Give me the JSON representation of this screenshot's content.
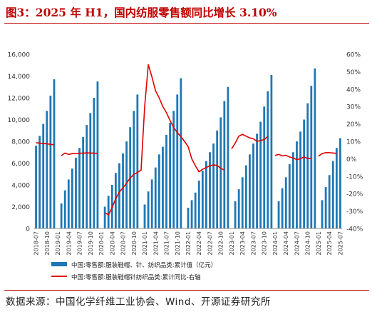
{
  "title": "图3：2025 年 H1，国内纺服零售额同比增长 3.10%",
  "source": "数据来源：中国化学纤维工业协会、Wind、开源证券研究所",
  "chart_data": {
    "type": "bar+line",
    "bar_color": "#1f77b4",
    "line_color": "#e00000",
    "legend_position": "bottom",
    "grid": false,
    "y_left": {
      "min": 0,
      "max": 16000,
      "ticks": [
        "0",
        "2,000",
        "4,000",
        "6,000",
        "8,000",
        "10,000",
        "12,000",
        "14,000",
        "16,000"
      ]
    },
    "y_right": {
      "min": -40,
      "max": 60,
      "ticks": [
        "-40%",
        "-30%",
        "-20%",
        "-10%",
        "0%",
        "10%",
        "20%",
        "30%",
        "40%",
        "50%",
        "60%"
      ]
    },
    "x_tick_labels": [
      "2018-07",
      "2018-10",
      "2019-01",
      "2019-04",
      "2019-07",
      "2019-10",
      "2020-01",
      "2020-04",
      "2020-07",
      "2020-10",
      "2021-01",
      "2021-04",
      "2021-07",
      "2021-10",
      "2022-01",
      "2022-04",
      "2022-07",
      "2022-10",
      "2023-01",
      "2023-04",
      "2023-07",
      "2023-10",
      "2024-01",
      "2024-04",
      "2024-07",
      "2024-10",
      "2025-01",
      "2025-04",
      "2025-07"
    ],
    "series": [
      {
        "name": "中国:零售额:服装鞋帽、针、纺织品类:累计值（亿元）",
        "axis": "left",
        "type": "bar",
        "values": [
          7600,
          8500,
          9600,
          10800,
          12200,
          13700,
          null,
          2300,
          3500,
          4500,
          5500,
          6500,
          7400,
          8400,
          9500,
          10600,
          12000,
          13500,
          null,
          2000,
          3000,
          4000,
          5100,
          6000,
          6900,
          8000,
          9300,
          10800,
          12300,
          null,
          2200,
          3400,
          4500,
          5600,
          6800,
          7500,
          8600,
          9700,
          10800,
          12300,
          13800,
          null,
          1900,
          2600,
          3300,
          4400,
          5300,
          6200,
          7000,
          7800,
          9000,
          10200,
          11700,
          13000,
          null,
          2500,
          3600,
          4700,
          5800,
          6800,
          7800,
          8700,
          9800,
          11200,
          12600,
          14100,
          null,
          2500,
          3700,
          4700,
          5900,
          7000,
          8000,
          8900,
          10000,
          11500,
          13100,
          14700,
          null,
          2600,
          3800,
          4900,
          6200,
          7400,
          8300
        ]
      },
      {
        "name": "中国:零售额:服装鞋帽针纺织品类:累计同比-右轴",
        "axis": "right",
        "type": "line",
        "values": [
          9.2,
          9.0,
          8.8,
          8.6,
          8.3,
          8.0,
          null,
          1.8,
          3.3,
          2.5,
          3.0,
          3.0,
          3.2,
          3.2,
          3.4,
          3.3,
          3.2,
          3.1,
          null,
          -30.9,
          -32.2,
          -28.0,
          -23.0,
          -19.1,
          -16.7,
          -14.0,
          -11.0,
          -9.0,
          -7.8,
          -6.6,
          30.0,
          54.0,
          47.0,
          39.0,
          35.0,
          30.0,
          26.5,
          22.0,
          18.0,
          15.0,
          12.7,
          10.0,
          7.0,
          0.0,
          -4.0,
          -7.5,
          -6.0,
          -5.0,
          -4.0,
          -3.5,
          -3.8,
          -5.5,
          -6.5,
          null,
          5.7,
          9.0,
          13.0,
          14.0,
          13.0,
          12.0,
          11.5,
          10.0,
          10.5,
          11.0,
          12.9,
          null,
          1.9,
          2.5,
          1.7,
          2.0,
          1.0,
          0.5,
          -0.5,
          0.0,
          1.0,
          0.2,
          0.3,
          null,
          1.5,
          3.0,
          3.5,
          3.5,
          3.3,
          3.1
        ]
      }
    ],
    "legend": [
      {
        "label": "中国:零售额:服装鞋帽、针、纺织品类:累计值（亿元）",
        "kind": "bar"
      },
      {
        "label": "中国:零售额:服装鞋帽针纺织品类:累计同比-右轴",
        "kind": "line"
      }
    ]
  }
}
